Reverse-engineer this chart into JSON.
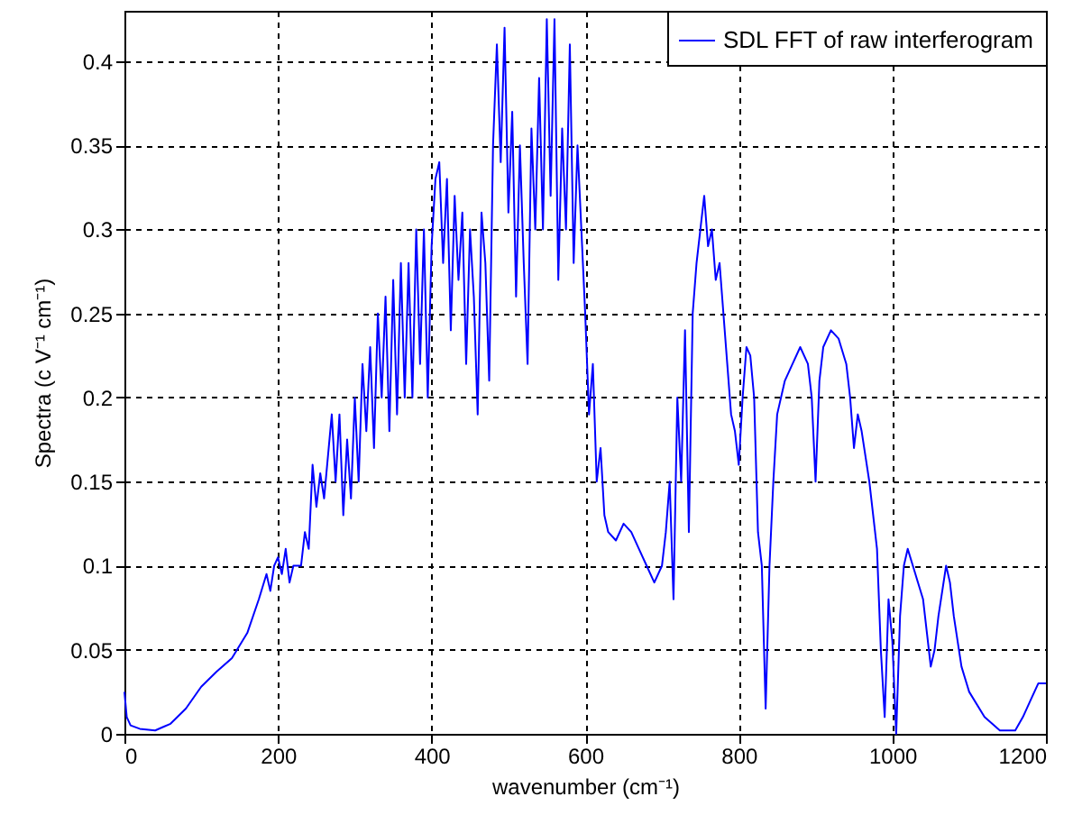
{
  "chart_data": {
    "type": "line",
    "xlabel": "wavenumber (cm⁻¹)",
    "ylabel": "Spectra (c V⁻¹ cm⁻¹)",
    "x": [
      0,
      3,
      8,
      20,
      40,
      50,
      60,
      80,
      100,
      120,
      140,
      160,
      175,
      185,
      190,
      195,
      200,
      205,
      210,
      215,
      220,
      230,
      235,
      240,
      245,
      250,
      255,
      260,
      270,
      275,
      280,
      285,
      290,
      295,
      300,
      305,
      310,
      315,
      320,
      325,
      330,
      335,
      340,
      345,
      350,
      355,
      360,
      365,
      370,
      375,
      380,
      385,
      390,
      395,
      400,
      405,
      410,
      415,
      420,
      425,
      430,
      435,
      440,
      445,
      450,
      455,
      460,
      465,
      470,
      475,
      480,
      485,
      490,
      495,
      500,
      505,
      510,
      515,
      520,
      525,
      530,
      535,
      540,
      545,
      550,
      555,
      560,
      565,
      570,
      575,
      580,
      585,
      590,
      595,
      600,
      605,
      610,
      615,
      620,
      625,
      630,
      640,
      650,
      660,
      670,
      680,
      690,
      700,
      705,
      710,
      715,
      720,
      725,
      730,
      735,
      740,
      745,
      750,
      755,
      760,
      765,
      770,
      775,
      780,
      785,
      790,
      795,
      800,
      805,
      810,
      815,
      820,
      825,
      830,
      835,
      840,
      845,
      850,
      860,
      870,
      880,
      890,
      895,
      900,
      905,
      910,
      920,
      930,
      940,
      945,
      950,
      955,
      960,
      970,
      980,
      985,
      990,
      995,
      1000,
      1005,
      1010,
      1015,
      1020,
      1030,
      1040,
      1045,
      1050,
      1055,
      1060,
      1070,
      1075,
      1080,
      1090,
      1100,
      1120,
      1140,
      1160,
      1170,
      1180,
      1190,
      1200
    ],
    "series": [
      {
        "name": "SDL FFT of raw interferogram",
        "color": "#0000ff",
        "values": [
          0.025,
          0.01,
          0.005,
          0.003,
          0.002,
          0.004,
          0.006,
          0.015,
          0.028,
          0.037,
          0.045,
          0.06,
          0.08,
          0.095,
          0.085,
          0.1,
          0.105,
          0.095,
          0.11,
          0.09,
          0.1,
          0.1,
          0.12,
          0.11,
          0.16,
          0.135,
          0.155,
          0.14,
          0.19,
          0.15,
          0.19,
          0.13,
          0.175,
          0.14,
          0.2,
          0.15,
          0.22,
          0.18,
          0.23,
          0.17,
          0.25,
          0.2,
          0.26,
          0.18,
          0.27,
          0.19,
          0.28,
          0.2,
          0.28,
          0.2,
          0.3,
          0.22,
          0.3,
          0.2,
          0.29,
          0.33,
          0.34,
          0.28,
          0.33,
          0.24,
          0.32,
          0.27,
          0.31,
          0.22,
          0.3,
          0.26,
          0.19,
          0.31,
          0.28,
          0.21,
          0.35,
          0.41,
          0.34,
          0.42,
          0.31,
          0.37,
          0.26,
          0.35,
          0.28,
          0.22,
          0.36,
          0.3,
          0.39,
          0.3,
          0.425,
          0.32,
          0.425,
          0.27,
          0.36,
          0.3,
          0.41,
          0.28,
          0.35,
          0.3,
          0.25,
          0.19,
          0.22,
          0.15,
          0.17,
          0.13,
          0.12,
          0.115,
          0.125,
          0.12,
          0.11,
          0.1,
          0.09,
          0.1,
          0.12,
          0.15,
          0.08,
          0.2,
          0.15,
          0.24,
          0.12,
          0.25,
          0.28,
          0.3,
          0.32,
          0.29,
          0.3,
          0.27,
          0.28,
          0.25,
          0.22,
          0.19,
          0.18,
          0.16,
          0.2,
          0.23,
          0.225,
          0.2,
          0.12,
          0.1,
          0.015,
          0.1,
          0.15,
          0.19,
          0.21,
          0.22,
          0.23,
          0.22,
          0.2,
          0.15,
          0.21,
          0.23,
          0.24,
          0.235,
          0.22,
          0.2,
          0.17,
          0.19,
          0.18,
          0.15,
          0.11,
          0.05,
          0.01,
          0.08,
          0.055,
          0.0,
          0.07,
          0.1,
          0.11,
          0.095,
          0.08,
          0.06,
          0.04,
          0.05,
          0.07,
          0.1,
          0.09,
          0.07,
          0.04,
          0.025,
          0.01,
          0.002,
          0.002,
          0.01,
          0.02,
          0.03,
          0.03
        ]
      }
    ],
    "xlim": [
      0,
      1200
    ],
    "xticks": [
      0,
      200,
      400,
      600,
      800,
      1000,
      1200
    ],
    "ylim": [
      0,
      0.43
    ],
    "yticks": [
      0,
      0.05,
      0.1,
      0.15,
      0.2,
      0.25,
      0.3,
      0.35,
      0.4
    ],
    "grid": true,
    "legend": "top right",
    "line_style": "solid",
    "marker": "none"
  }
}
